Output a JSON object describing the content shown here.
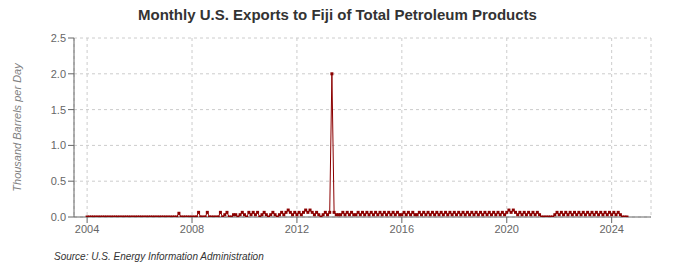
{
  "chart_data": {
    "type": "line",
    "title": "Monthly U.S. Exports to Fiji of Total Petroleum Products",
    "ylabel": "Thousand Barrels per Day",
    "annotations": [
      "Source: U.S. Energy Information Administration"
    ],
    "color": "#8b0000",
    "marker": "square",
    "grid": true,
    "xlim": [
      2003.5,
      2025.5
    ],
    "ylim": [
      0,
      2.5
    ],
    "xticks": [
      2004,
      2008,
      2012,
      2016,
      2020,
      2024
    ],
    "yticks": [
      {
        "value": 0.0,
        "label": "0.0"
      },
      0.5,
      {
        "value": 1.0,
        "label": "1.0"
      },
      1.5,
      {
        "value": 2.0,
        "label": "2.0"
      },
      2.5
    ],
    "x": [
      2004.0,
      2004.083,
      2004.167,
      2004.25,
      2004.333,
      2004.417,
      2004.5,
      2004.583,
      2004.667,
      2004.75,
      2004.833,
      2004.917,
      2005.0,
      2005.083,
      2005.167,
      2005.25,
      2005.333,
      2005.417,
      2005.5,
      2005.583,
      2005.667,
      2005.75,
      2005.833,
      2005.917,
      2006.0,
      2006.083,
      2006.167,
      2006.25,
      2006.333,
      2006.417,
      2006.5,
      2006.583,
      2006.667,
      2006.75,
      2006.833,
      2006.917,
      2007.0,
      2007.083,
      2007.167,
      2007.25,
      2007.333,
      2007.417,
      2007.5,
      2007.583,
      2007.667,
      2007.75,
      2007.833,
      2007.917,
      2008.0,
      2008.083,
      2008.167,
      2008.25,
      2008.333,
      2008.417,
      2008.5,
      2008.583,
      2008.667,
      2008.75,
      2008.833,
      2008.917,
      2009.0,
      2009.083,
      2009.167,
      2009.25,
      2009.333,
      2009.417,
      2009.5,
      2009.583,
      2009.667,
      2009.75,
      2009.833,
      2009.917,
      2010.0,
      2010.083,
      2010.167,
      2010.25,
      2010.333,
      2010.417,
      2010.5,
      2010.583,
      2010.667,
      2010.75,
      2010.833,
      2010.917,
      2011.0,
      2011.083,
      2011.167,
      2011.25,
      2011.333,
      2011.417,
      2011.5,
      2011.583,
      2011.667,
      2011.75,
      2011.833,
      2011.917,
      2012.0,
      2012.083,
      2012.167,
      2012.25,
      2012.333,
      2012.417,
      2012.5,
      2012.583,
      2012.667,
      2012.75,
      2012.833,
      2012.917,
      2013.0,
      2013.083,
      2013.167,
      2013.25,
      2013.333,
      2013.417,
      2013.5,
      2013.583,
      2013.667,
      2013.75,
      2013.833,
      2013.917,
      2014.0,
      2014.083,
      2014.167,
      2014.25,
      2014.333,
      2014.417,
      2014.5,
      2014.583,
      2014.667,
      2014.75,
      2014.833,
      2014.917,
      2015.0,
      2015.083,
      2015.167,
      2015.25,
      2015.333,
      2015.417,
      2015.5,
      2015.583,
      2015.667,
      2015.75,
      2015.833,
      2015.917,
      2016.0,
      2016.083,
      2016.167,
      2016.25,
      2016.333,
      2016.417,
      2016.5,
      2016.583,
      2016.667,
      2016.75,
      2016.833,
      2016.917,
      2017.0,
      2017.083,
      2017.167,
      2017.25,
      2017.333,
      2017.417,
      2017.5,
      2017.583,
      2017.667,
      2017.75,
      2017.833,
      2017.917,
      2018.0,
      2018.083,
      2018.167,
      2018.25,
      2018.333,
      2018.417,
      2018.5,
      2018.583,
      2018.667,
      2018.75,
      2018.833,
      2018.917,
      2019.0,
      2019.083,
      2019.167,
      2019.25,
      2019.333,
      2019.417,
      2019.5,
      2019.583,
      2019.667,
      2019.75,
      2019.833,
      2019.917,
      2020.0,
      2020.083,
      2020.167,
      2020.25,
      2020.333,
      2020.417,
      2020.5,
      2020.583,
      2020.667,
      2020.75,
      2020.833,
      2020.917,
      2021.0,
      2021.083,
      2021.167,
      2021.25,
      2021.333,
      2021.417,
      2021.5,
      2021.583,
      2021.667,
      2021.75,
      2021.833,
      2021.917,
      2022.0,
      2022.083,
      2022.167,
      2022.25,
      2022.333,
      2022.417,
      2022.5,
      2022.583,
      2022.667,
      2022.75,
      2022.833,
      2022.917,
      2023.0,
      2023.083,
      2023.167,
      2023.25,
      2023.333,
      2023.417,
      2023.5,
      2023.583,
      2023.667,
      2023.75,
      2023.833,
      2023.917,
      2024.0,
      2024.083,
      2024.167,
      2024.25,
      2024.333,
      2024.417,
      2024.5,
      2024.583
    ],
    "values": [
      0.0,
      0.0,
      0.0,
      0.0,
      0.0,
      0.0,
      0.0,
      0.0,
      0.0,
      0.0,
      0.0,
      0.0,
      0.0,
      0.0,
      0.0,
      0.0,
      0.0,
      0.0,
      0.0,
      0.0,
      0.0,
      0.0,
      0.0,
      0.0,
      0.0,
      0.0,
      0.0,
      0.0,
      0.0,
      0.0,
      0.0,
      0.0,
      0.0,
      0.0,
      0.0,
      0.0,
      0.0,
      0.0,
      0.0,
      0.0,
      0.0,
      0.0,
      0.052,
      0.0,
      0.0,
      0.0,
      0.0,
      0.0,
      0.0,
      0.0,
      0.0,
      0.065,
      0.0,
      0.0,
      0.0,
      0.065,
      0.0,
      0.0,
      0.0,
      0.0,
      0.0,
      0.065,
      0.0,
      0.032,
      0.065,
      0.0,
      0.0,
      0.032,
      0.032,
      0.0,
      0.032,
      0.065,
      0.032,
      0.0,
      0.065,
      0.032,
      0.065,
      0.032,
      0.065,
      0.0,
      0.032,
      0.065,
      0.032,
      0.0,
      0.032,
      0.065,
      0.032,
      0.0,
      0.032,
      0.065,
      0.032,
      0.065,
      0.097,
      0.065,
      0.032,
      0.065,
      0.032,
      0.065,
      0.032,
      0.065,
      0.097,
      0.065,
      0.097,
      0.065,
      0.032,
      0.065,
      0.032,
      0.0,
      0.032,
      0.065,
      0.032,
      0.065,
      2.0,
      0.065,
      0.032,
      0.032,
      0.032,
      0.065,
      0.032,
      0.065,
      0.032,
      0.065,
      0.032,
      0.032,
      0.065,
      0.032,
      0.065,
      0.032,
      0.065,
      0.032,
      0.065,
      0.032,
      0.065,
      0.032,
      0.065,
      0.032,
      0.065,
      0.032,
      0.065,
      0.032,
      0.065,
      0.032,
      0.065,
      0.032,
      0.032,
      0.065,
      0.032,
      0.065,
      0.032,
      0.065,
      0.032,
      0.032,
      0.065,
      0.032,
      0.065,
      0.032,
      0.065,
      0.032,
      0.065,
      0.032,
      0.065,
      0.032,
      0.065,
      0.032,
      0.065,
      0.032,
      0.065,
      0.032,
      0.065,
      0.032,
      0.065,
      0.032,
      0.065,
      0.032,
      0.065,
      0.032,
      0.065,
      0.032,
      0.065,
      0.032,
      0.065,
      0.032,
      0.065,
      0.032,
      0.065,
      0.032,
      0.065,
      0.032,
      0.065,
      0.032,
      0.065,
      0.032,
      0.065,
      0.097,
      0.065,
      0.097,
      0.065,
      0.032,
      0.065,
      0.032,
      0.065,
      0.032,
      0.065,
      0.032,
      0.065,
      0.032,
      0.065,
      0.032,
      0.0,
      0.0,
      0.0,
      0.0,
      0.0,
      0.0,
      0.032,
      0.065,
      0.032,
      0.065,
      0.032,
      0.065,
      0.032,
      0.065,
      0.032,
      0.065,
      0.032,
      0.065,
      0.032,
      0.065,
      0.032,
      0.065,
      0.032,
      0.065,
      0.032,
      0.065,
      0.032,
      0.065,
      0.032,
      0.065,
      0.032,
      0.065,
      0.032,
      0.065,
      0.032,
      0.065,
      0.032,
      0.0,
      0.0,
      0.0
    ]
  }
}
